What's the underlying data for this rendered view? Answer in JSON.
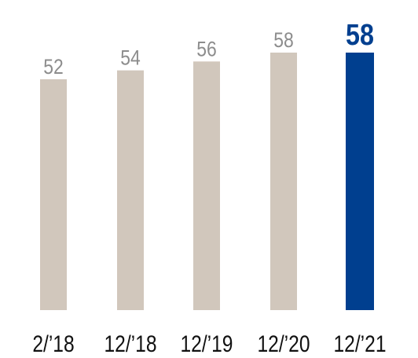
{
  "chart_data": {
    "type": "bar",
    "categories": [
      "2/’18",
      "12/’18",
      "12/’19",
      "12/’20",
      "12/’21"
    ],
    "values": [
      52,
      54,
      56,
      58,
      58
    ],
    "colors": [
      "#d1c7bc",
      "#d1c7bc",
      "#d1c7bc",
      "#d1c7bc",
      "#003f8f"
    ],
    "label_colors": [
      "#8c8c8c",
      "#8c8c8c",
      "#8c8c8c",
      "#8c8c8c",
      "#003f8f"
    ],
    "highlight": 4
  }
}
